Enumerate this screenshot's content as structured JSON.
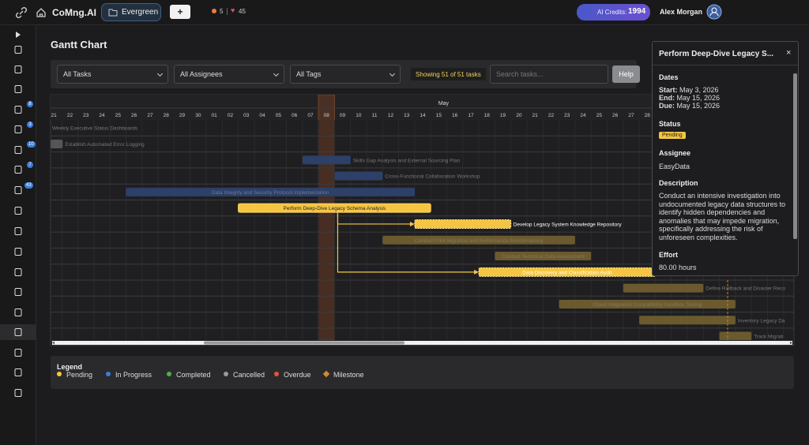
{
  "topbar": {
    "brand": "CoMng.AI",
    "project": "Evergreen",
    "add": "+",
    "alerts": "5",
    "likes": "45",
    "credits_label": "AI Credits:",
    "credits": "1994",
    "user": "Alex Morgan"
  },
  "sidebar": {
    "badges": [
      "8",
      "3",
      "10",
      "7",
      "43"
    ]
  },
  "page": {
    "title": "Gantt Chart"
  },
  "filters": {
    "tasks": "All Tasks",
    "assignees": "All Assignees",
    "tags": "All Tags",
    "count": "Showing 51 of 51 tasks",
    "search_placeholder": "Search tasks...",
    "help": "Help"
  },
  "gantt": {
    "month": "May",
    "days": [
      "21",
      "22",
      "23",
      "24",
      "25",
      "26",
      "27",
      "28",
      "29",
      "30",
      "01",
      "02",
      "03",
      "04",
      "05",
      "06",
      "07",
      "08",
      "09",
      "10",
      "11",
      "12",
      "13",
      "14",
      "15",
      "16",
      "17",
      "18",
      "19",
      "20",
      "21",
      "22",
      "23",
      "24",
      "25",
      "26",
      "27",
      "28"
    ],
    "tasks": [
      "Weekly Executive Status Dashboards",
      "Establish Automated Error Logging",
      "Skills Gap Analysis and External Sourcing Plan",
      "Cross-Functional Collaboration Workshop",
      "Data Integrity and Security Protocol Implementation",
      "Perform Deep-Dive Legacy Schema Analysis",
      "Develop Legacy System Knowledge Repository",
      "Conduct Pilot Migration and Performance Benchmarking",
      "Conduct Technical Data Assessment",
      "Data Discovery and Classification Audit",
      "Define Rollback and Disaster Reco",
      "Cloud Integration Compatibility Sandbox Testing",
      "Inventory Legacy Da",
      "Track Migrati"
    ]
  },
  "tooltip": {
    "title": "Perform Deep-Dive Legacy S...",
    "close": "×",
    "dates_heading": "Dates",
    "start_label": "Start:",
    "start": "May 3, 2026",
    "end_label": "End:",
    "end": "May 15, 2026",
    "due_label": "Due:",
    "due": "May 15, 2026",
    "status_heading": "Status",
    "status": "Pending",
    "assignee_heading": "Assignee",
    "assignee": "EasyData",
    "description_heading": "Description",
    "description": "Conduct an intensive investigation into undocumented legacy data structures to identify hidden dependencies and anomalies that may impede migration, specifically addressing the risk of unforeseen complexities.",
    "effort_heading": "Effort",
    "effort": "80.00 hours"
  },
  "legend": {
    "title": "Legend",
    "items": [
      "Pending",
      "In Progress",
      "Completed",
      "Cancelled",
      "Overdue",
      "Milestone"
    ]
  }
}
